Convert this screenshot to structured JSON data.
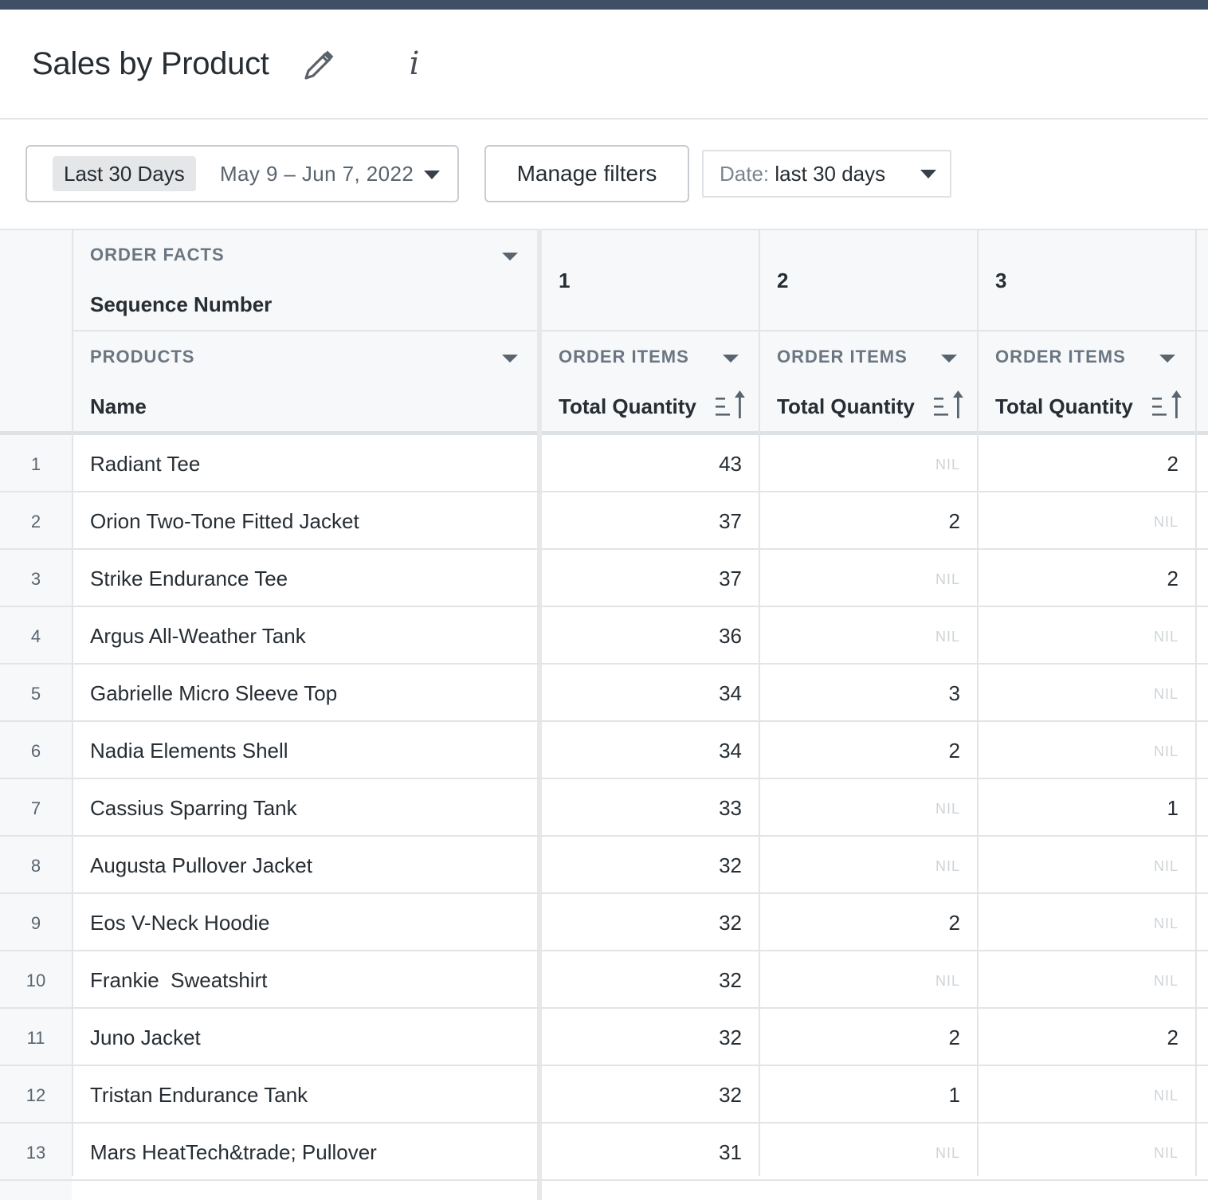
{
  "header": {
    "title": "Sales by Product",
    "info_glyph": "i"
  },
  "filters": {
    "preset": "Last 30 Days",
    "range": "May 9 – Jun 7, 2022",
    "manage_label": "Manage filters",
    "date_filter_label": "Date:",
    "date_filter_value": "last 30 days"
  },
  "table": {
    "pivot_group": "ORDER FACTS",
    "pivot_field": "Sequence Number",
    "row_group": "PRODUCTS",
    "row_field": "Name",
    "pivot_values": [
      "1",
      "2",
      "3"
    ],
    "measure_group": "ORDER ITEMS",
    "measure_field": "Total Quantity",
    "rows": [
      {
        "n": "1",
        "name": "Radiant Tee",
        "v": [
          "43",
          "NIL",
          "2"
        ]
      },
      {
        "n": "2",
        "name": "Orion Two-Tone Fitted Jacket",
        "v": [
          "37",
          "2",
          "NIL"
        ]
      },
      {
        "n": "3",
        "name": "Strike Endurance Tee",
        "v": [
          "37",
          "NIL",
          "2"
        ]
      },
      {
        "n": "4",
        "name": "Argus All-Weather Tank",
        "v": [
          "36",
          "NIL",
          "NIL"
        ]
      },
      {
        "n": "5",
        "name": "Gabrielle Micro Sleeve Top",
        "v": [
          "34",
          "3",
          "NIL"
        ]
      },
      {
        "n": "6",
        "name": "Nadia Elements Shell",
        "v": [
          "34",
          "2",
          "NIL"
        ]
      },
      {
        "n": "7",
        "name": "Cassius Sparring Tank",
        "v": [
          "33",
          "NIL",
          "1"
        ]
      },
      {
        "n": "8",
        "name": "Augusta Pullover Jacket",
        "v": [
          "32",
          "NIL",
          "NIL"
        ]
      },
      {
        "n": "9",
        "name": "Eos V-Neck Hoodie",
        "v": [
          "32",
          "2",
          "NIL"
        ]
      },
      {
        "n": "10",
        "name": "Frankie  Sweatshirt",
        "v": [
          "32",
          "NIL",
          "NIL"
        ]
      },
      {
        "n": "11",
        "name": "Juno Jacket",
        "v": [
          "32",
          "2",
          "2"
        ]
      },
      {
        "n": "12",
        "name": "Tristan Endurance Tank",
        "v": [
          "32",
          "1",
          "NIL"
        ]
      },
      {
        "n": "13",
        "name": "Mars HeatTech&trade; Pullover",
        "v": [
          "31",
          "NIL",
          "NIL"
        ]
      }
    ]
  },
  "colors": {
    "topbar": "#3f4f65",
    "header_bg": "#f7f8f9",
    "nil_text": "#ced3d8"
  },
  "icons": [
    "pencil-icon",
    "info-icon",
    "chevron-down-icon",
    "sort-ascending-icon"
  ]
}
